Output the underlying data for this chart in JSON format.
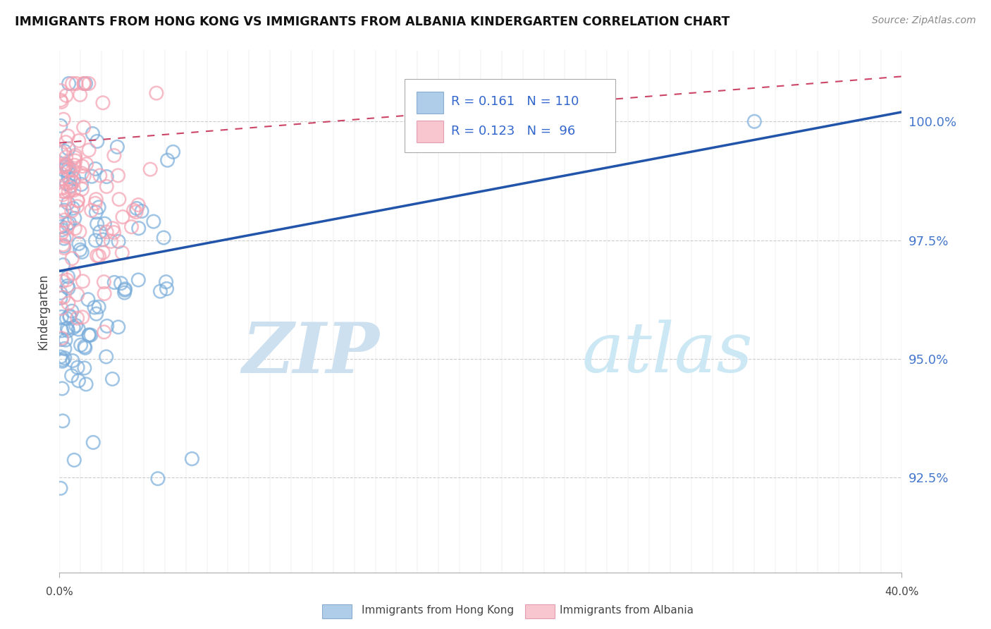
{
  "title": "IMMIGRANTS FROM HONG KONG VS IMMIGRANTS FROM ALBANIA KINDERGARTEN CORRELATION CHART",
  "source": "Source: ZipAtlas.com",
  "ylabel": "Kindergarten",
  "y_ticks": [
    92.5,
    95.0,
    97.5,
    100.0
  ],
  "y_tick_labels": [
    "92.5%",
    "95.0%",
    "97.5%",
    "100.0%"
  ],
  "x_range": [
    0.0,
    40.0
  ],
  "y_range": [
    90.5,
    101.5
  ],
  "hk_color": "#7aaddb",
  "hk_edge": "#5588bb",
  "alb_color": "#f4a0b0",
  "alb_edge": "#d47090",
  "hk_R": 0.161,
  "hk_N": 110,
  "alb_R": 0.123,
  "alb_N": 96,
  "trend_hk_color": "#2255aa",
  "trend_alb_color": "#cc4466",
  "watermark_zip_color": "#cce0f0",
  "watermark_atlas_color": "#cce8f5"
}
